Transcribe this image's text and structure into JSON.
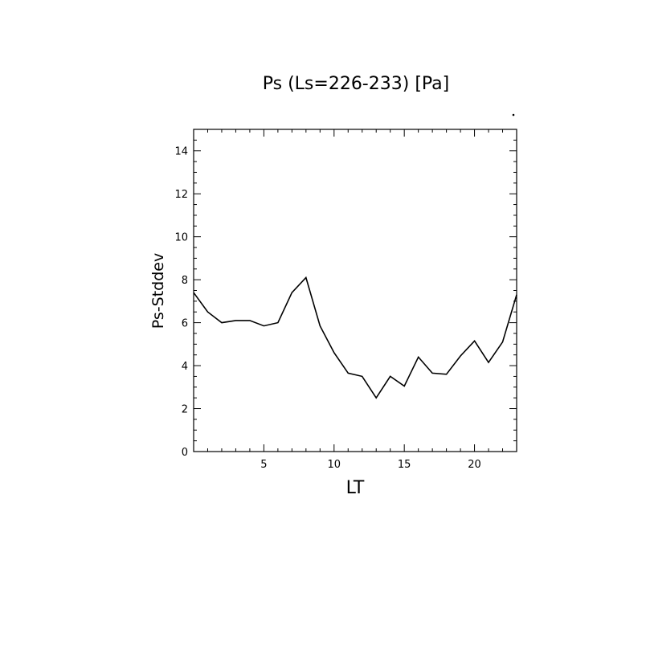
{
  "chart_data": {
    "type": "line",
    "title": "Ps (Ls=226-233) [Pa]",
    "xlabel": "LT",
    "ylabel": "Ps-Stddev",
    "xlim": [
      0,
      23
    ],
    "ylim": [
      0,
      15
    ],
    "x_ticks": [
      5,
      10,
      15,
      20
    ],
    "y_ticks": [
      0,
      2,
      4,
      6,
      8,
      10,
      12,
      14
    ],
    "x_tick_labels": [
      "5",
      "10",
      "15",
      "20"
    ],
    "y_tick_labels": [
      "0",
      "2",
      "4",
      "6",
      "8",
      "10",
      "12",
      "14"
    ],
    "grid": false,
    "series": [
      {
        "x": [
          0,
          1,
          2,
          3,
          4,
          5,
          6,
          7,
          8,
          9,
          10,
          11,
          12,
          13,
          14,
          15,
          16,
          17,
          18,
          19,
          20,
          21,
          22,
          23
        ],
        "y": [
          7.4,
          6.5,
          6.0,
          6.1,
          6.1,
          5.85,
          6.0,
          7.4,
          8.1,
          5.85,
          4.6,
          3.65,
          3.5,
          2.5,
          3.5,
          3.05,
          4.4,
          3.65,
          3.6,
          4.45,
          5.15,
          4.15,
          5.1,
          7.3
        ]
      }
    ],
    "colors": {
      "line": "#000000",
      "axis": "#000000",
      "background": "#ffffff"
    }
  }
}
